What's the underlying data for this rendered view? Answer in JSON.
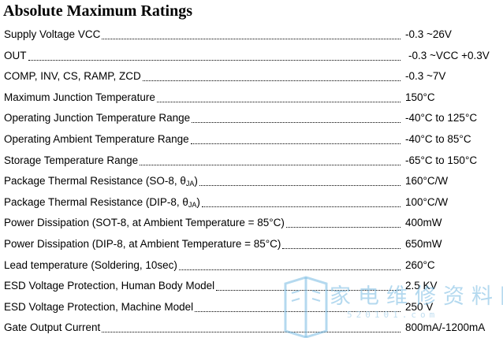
{
  "title": "Absolute Maximum Ratings",
  "rows": [
    {
      "param": "Supply Voltage VCC",
      "value": "-0.3 ~26V"
    },
    {
      "param": "OUT",
      "value": "-0.3 ~VCC +0.3V"
    },
    {
      "param": "COMP, INV, CS, RAMP, ZCD",
      "value": "-0.3 ~7V"
    },
    {
      "param": "Maximum Junction Temperature",
      "value": "150°C"
    },
    {
      "param": "Operating Junction Temperature Range",
      "value": "-40°C to 125°C"
    },
    {
      "param": "Operating Ambient Temperature Range",
      "value": "-40°C to 85°C"
    },
    {
      "param": "Storage Temperature Range",
      "value": "-65°C to 150°C"
    },
    {
      "param": "Package Thermal Resistance (SO-8, θ",
      "sub": "JA",
      "suffix": ")",
      "value": "160°C/W"
    },
    {
      "param": "Package Thermal Resistance (DIP-8, θ",
      "sub": "JA",
      "suffix": ")",
      "value": "100°C/W"
    },
    {
      "param": "Power Dissipation (SOT-8, at Ambient Temperature = 85°C)",
      "value": "400mW"
    },
    {
      "param": "Power Dissipation (DIP-8, at Ambient Temperature = 85°C)",
      "value": "650mW"
    },
    {
      "param": "Lead temperature (Soldering, 10sec)",
      "value": "260°C"
    },
    {
      "param": "ESD Voltage Protection, Human Body Model",
      "value": "2.5 KV"
    },
    {
      "param": "ESD Voltage Protection, Machine Model",
      "value": "250 V"
    },
    {
      "param": "Gate Output Current",
      "value": "800mA/-1200mA"
    }
  ],
  "watermark": {
    "text": "家电维修资料网",
    "url": "520101.com",
    "color": "#76bae2"
  }
}
